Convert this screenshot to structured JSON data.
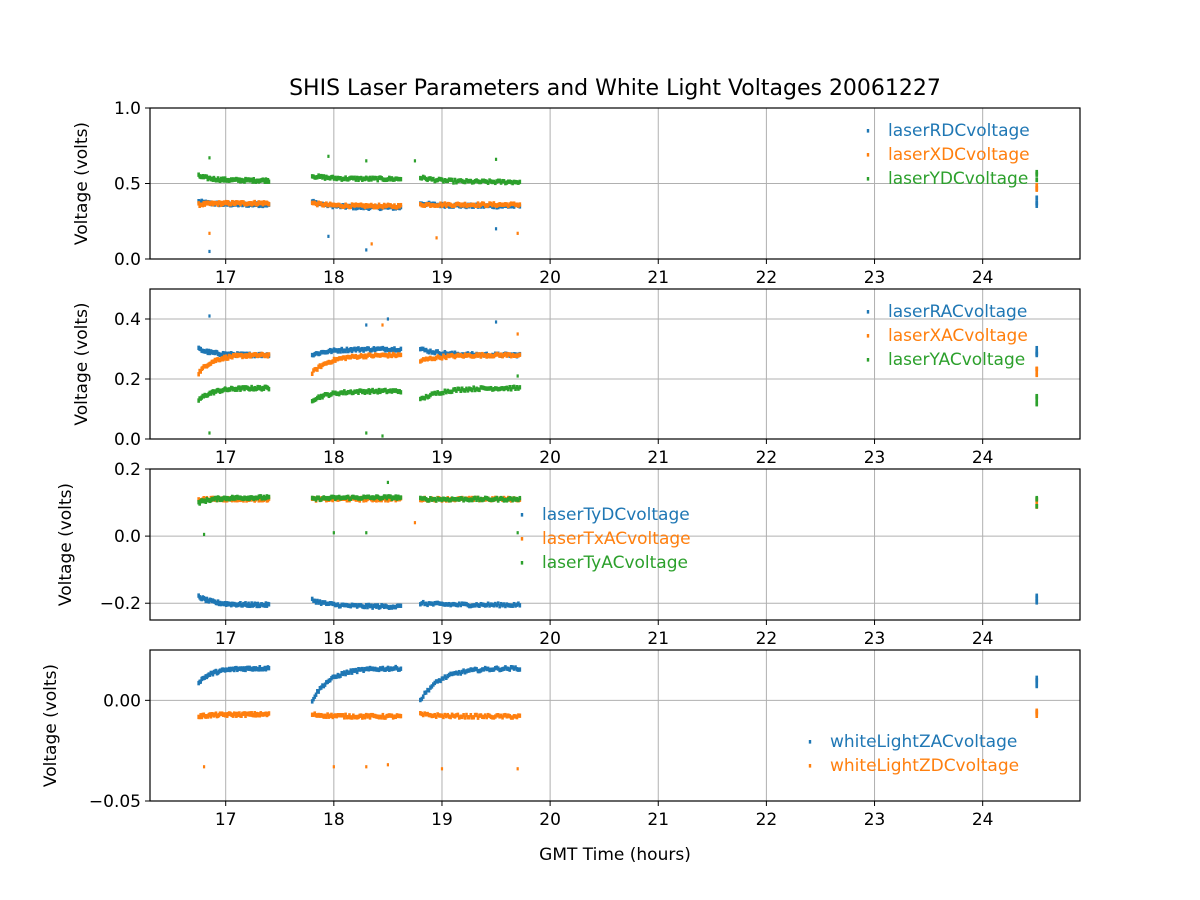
{
  "figure_title": "SHIS Laser Parameters and White Light Voltages 20061227",
  "chart_data": [
    {
      "type": "scatter",
      "ylabel": "Voltage (volts)",
      "xlabel": "",
      "xlim": [
        16.3,
        24.9
      ],
      "ylim": [
        0.0,
        1.0
      ],
      "x_ticks": [
        17,
        18,
        19,
        20,
        21,
        22,
        23,
        24
      ],
      "y_ticks": [
        0.0,
        0.5,
        1.0
      ],
      "y_tick_labels": [
        "0.0",
        "0.5",
        "1.0"
      ],
      "grid": true,
      "legend_position": "top-right",
      "series": [
        {
          "name": "laserRDCvoltage",
          "color": "#1f77b4",
          "segments": [
            [
              16.75,
              17.4,
              0.38,
              0.36
            ],
            [
              17.8,
              18.62,
              0.38,
              0.34
            ],
            [
              18.8,
              19.72,
              0.37,
              0.35
            ]
          ],
          "end_cluster": [
            24.5,
            0.38
          ],
          "outliers": [
            [
              16.85,
              0.05
            ],
            [
              17.95,
              0.15
            ],
            [
              18.3,
              0.06
            ],
            [
              19.5,
              0.2
            ]
          ]
        },
        {
          "name": "laserXDCvoltage",
          "color": "#ff7f0e",
          "segments": [
            [
              16.75,
              17.4,
              0.36,
              0.37
            ],
            [
              17.8,
              18.62,
              0.37,
              0.35
            ],
            [
              18.8,
              19.72,
              0.36,
              0.36
            ]
          ],
          "end_cluster": [
            24.5,
            0.47
          ],
          "outliers": [
            [
              16.85,
              0.17
            ],
            [
              18.35,
              0.1
            ],
            [
              18.95,
              0.14
            ],
            [
              19.7,
              0.17
            ]
          ]
        },
        {
          "name": "laserYDCvoltage",
          "color": "#2ca02c",
          "segments": [
            [
              16.75,
              17.4,
              0.55,
              0.52
            ],
            [
              17.8,
              18.62,
              0.55,
              0.53
            ],
            [
              18.8,
              19.72,
              0.54,
              0.51
            ]
          ],
          "end_cluster": [
            24.5,
            0.55
          ],
          "outliers": [
            [
              16.85,
              0.67
            ],
            [
              17.95,
              0.68
            ],
            [
              18.3,
              0.65
            ],
            [
              18.75,
              0.65
            ],
            [
              19.5,
              0.66
            ]
          ]
        }
      ]
    },
    {
      "type": "scatter",
      "ylabel": "Voltage (volts)",
      "xlabel": "",
      "xlim": [
        16.3,
        24.9
      ],
      "ylim": [
        0.0,
        0.5
      ],
      "x_ticks": [
        17,
        18,
        19,
        20,
        21,
        22,
        23,
        24
      ],
      "y_ticks": [
        0.0,
        0.2,
        0.4
      ],
      "y_tick_labels": [
        "0.0",
        "0.2",
        "0.4"
      ],
      "grid": true,
      "legend_position": "top-right",
      "series": [
        {
          "name": "laserRACvoltage",
          "color": "#1f77b4",
          "segments": [
            [
              16.75,
              17.4,
              0.3,
              0.28
            ],
            [
              17.8,
              18.62,
              0.28,
              0.3
            ],
            [
              18.8,
              19.72,
              0.3,
              0.28
            ]
          ],
          "end_cluster": [
            24.5,
            0.29
          ],
          "outliers": [
            [
              16.85,
              0.41
            ],
            [
              18.3,
              0.38
            ],
            [
              18.5,
              0.4
            ],
            [
              19.5,
              0.39
            ]
          ]
        },
        {
          "name": "laserXACvoltage",
          "color": "#ff7f0e",
          "segments": [
            [
              16.75,
              17.4,
              0.22,
              0.28
            ],
            [
              17.8,
              18.62,
              0.22,
              0.28
            ],
            [
              18.8,
              19.72,
              0.26,
              0.28
            ]
          ],
          "end_cluster": [
            24.5,
            0.22
          ],
          "outliers": [
            [
              18.45,
              0.38
            ],
            [
              19.7,
              0.35
            ]
          ]
        },
        {
          "name": "laserYACvoltage",
          "color": "#2ca02c",
          "segments": [
            [
              16.75,
              17.4,
              0.13,
              0.17
            ],
            [
              17.8,
              18.62,
              0.13,
              0.16
            ],
            [
              18.8,
              19.72,
              0.13,
              0.17
            ]
          ],
          "end_cluster": [
            24.5,
            0.13
          ],
          "outliers": [
            [
              16.85,
              0.02
            ],
            [
              18.3,
              0.02
            ],
            [
              18.45,
              0.01
            ],
            [
              19.7,
              0.21
            ]
          ]
        }
      ]
    },
    {
      "type": "scatter",
      "ylabel": "Voltage (volts)",
      "xlabel": "",
      "xlim": [
        16.3,
        24.9
      ],
      "ylim": [
        -0.25,
        0.2
      ],
      "x_ticks": [
        17,
        18,
        19,
        20,
        21,
        22,
        23,
        24
      ],
      "y_ticks": [
        -0.2,
        0.0,
        0.2
      ],
      "y_tick_labels": [
        "−0.2",
        "0.0",
        "0.2"
      ],
      "grid": true,
      "legend_position": "center",
      "series": [
        {
          "name": "laserTyDCvoltage",
          "color": "#1f77b4",
          "segments": [
            [
              16.75,
              17.4,
              -0.18,
              -0.205
            ],
            [
              17.8,
              18.62,
              -0.19,
              -0.21
            ],
            [
              18.8,
              19.72,
              -0.2,
              -0.205
            ]
          ],
          "end_cluster": [
            24.5,
            -0.19
          ],
          "outliers": []
        },
        {
          "name": "laserTxACvoltage",
          "color": "#ff7f0e",
          "segments": [
            [
              16.75,
              17.4,
              0.11,
              0.11
            ],
            [
              17.8,
              18.62,
              0.11,
              0.11
            ],
            [
              18.8,
              19.72,
              0.11,
              0.11
            ]
          ],
          "end_cluster": [
            24.5,
            0.1
          ],
          "outliers": [
            [
              18.75,
              0.04
            ]
          ]
        },
        {
          "name": "laserTyACvoltage",
          "color": "#2ca02c",
          "segments": [
            [
              16.75,
              17.4,
              0.1,
              0.115
            ],
            [
              17.8,
              18.62,
              0.11,
              0.115
            ],
            [
              18.8,
              19.72,
              0.11,
              0.11
            ]
          ],
          "end_cluster": [
            24.5,
            0.1
          ],
          "outliers": [
            [
              16.8,
              0.005
            ],
            [
              18.0,
              0.01
            ],
            [
              18.3,
              0.01
            ],
            [
              18.5,
              0.16
            ],
            [
              19.7,
              0.01
            ]
          ]
        }
      ]
    },
    {
      "type": "scatter",
      "ylabel": "Voltage (volts)",
      "xlabel": "GMT Time (hours)",
      "xlim": [
        16.3,
        24.9
      ],
      "ylim": [
        -0.05,
        0.025
      ],
      "x_ticks": [
        17,
        18,
        19,
        20,
        21,
        22,
        23,
        24
      ],
      "y_ticks": [
        -0.05,
        0.0
      ],
      "y_tick_labels": [
        "−0.05",
        "0.00"
      ],
      "grid": true,
      "legend_position": "bottom-right",
      "series": [
        {
          "name": "whiteLightZACvoltage",
          "color": "#1f77b4",
          "segments": [
            [
              16.75,
              17.4,
              0.009,
              0.016
            ],
            [
              17.8,
              18.62,
              0.0,
              0.016
            ],
            [
              18.8,
              19.72,
              0.0,
              0.016
            ]
          ],
          "end_cluster": [
            24.5,
            0.009
          ],
          "outliers": []
        },
        {
          "name": "whiteLightZDCvoltage",
          "color": "#ff7f0e",
          "segments": [
            [
              16.75,
              17.4,
              -0.008,
              -0.007
            ],
            [
              17.8,
              18.62,
              -0.007,
              -0.008
            ],
            [
              18.8,
              19.72,
              -0.007,
              -0.008
            ]
          ],
          "end_cluster": [
            24.5,
            -0.007
          ],
          "outliers": [
            [
              16.8,
              -0.033
            ],
            [
              18.0,
              -0.033
            ],
            [
              18.3,
              -0.033
            ],
            [
              18.5,
              -0.032
            ],
            [
              19.0,
              -0.034
            ],
            [
              19.7,
              -0.034
            ]
          ]
        }
      ]
    }
  ]
}
